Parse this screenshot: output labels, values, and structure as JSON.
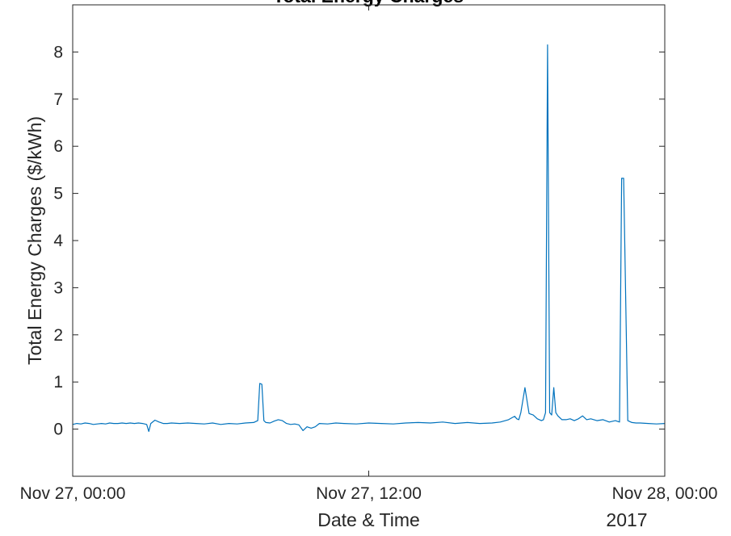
{
  "chart_data": {
    "type": "line",
    "title": "Total Energy Charges",
    "xlabel": "Date & Time",
    "ylabel": "Total Energy Charges ($/kWh)",
    "x_secondary_label": "2017",
    "xlim": [
      "2017-11-27 00:00",
      "2017-11-28 00:00"
    ],
    "ylim": [
      -1,
      9
    ],
    "x_ticks": [
      {
        "t": "2017-11-27 00:00",
        "label": "Nov 27, 00:00"
      },
      {
        "t": "2017-11-27 12:00",
        "label": "Nov 27, 12:00"
      },
      {
        "t": "2017-11-28 00:00",
        "label": "Nov 28, 00:00"
      }
    ],
    "y_ticks": [
      0,
      1,
      2,
      3,
      4,
      5,
      6,
      7,
      8
    ],
    "grid": false,
    "line_color": "#0072BD",
    "series": [
      {
        "x": [
          "2017-11-27 00:00",
          "2017-11-27 00:10",
          "2017-11-27 00:20",
          "2017-11-27 00:30",
          "2017-11-27 00:40",
          "2017-11-27 00:50",
          "2017-11-27 01:00",
          "2017-11-27 01:10",
          "2017-11-27 01:20",
          "2017-11-27 01:30",
          "2017-11-27 01:40",
          "2017-11-27 01:50",
          "2017-11-27 02:00",
          "2017-11-27 02:10",
          "2017-11-27 02:20",
          "2017-11-27 02:30",
          "2017-11-27 02:40",
          "2017-11-27 02:50",
          "2017-11-27 03:00",
          "2017-11-27 03:05",
          "2017-11-27 03:10",
          "2017-11-27 03:20",
          "2017-11-27 03:30",
          "2017-11-27 03:40",
          "2017-11-27 03:50",
          "2017-11-27 04:00",
          "2017-11-27 04:20",
          "2017-11-27 04:40",
          "2017-11-27 05:00",
          "2017-11-27 05:20",
          "2017-11-27 05:40",
          "2017-11-27 06:00",
          "2017-11-27 06:20",
          "2017-11-27 06:40",
          "2017-11-27 07:00",
          "2017-11-27 07:20",
          "2017-11-27 07:30",
          "2017-11-27 07:35",
          "2017-11-27 07:40",
          "2017-11-27 07:45",
          "2017-11-27 07:50",
          "2017-11-27 08:00",
          "2017-11-27 08:10",
          "2017-11-27 08:20",
          "2017-11-27 08:30",
          "2017-11-27 08:40",
          "2017-11-27 08:50",
          "2017-11-27 09:00",
          "2017-11-27 09:10",
          "2017-11-27 09:20",
          "2017-11-27 09:30",
          "2017-11-27 09:40",
          "2017-11-27 09:50",
          "2017-11-27 10:00",
          "2017-11-27 10:20",
          "2017-11-27 10:40",
          "2017-11-27 11:00",
          "2017-11-27 11:30",
          "2017-11-27 12:00",
          "2017-11-27 12:30",
          "2017-11-27 13:00",
          "2017-11-27 13:30",
          "2017-11-27 14:00",
          "2017-11-27 14:30",
          "2017-11-27 15:00",
          "2017-11-27 15:30",
          "2017-11-27 16:00",
          "2017-11-27 16:30",
          "2017-11-27 17:00",
          "2017-11-27 17:20",
          "2017-11-27 17:40",
          "2017-11-27 17:50",
          "2017-11-27 17:55",
          "2017-11-27 18:00",
          "2017-11-27 18:05",
          "2017-11-27 18:10",
          "2017-11-27 18:20",
          "2017-11-27 18:30",
          "2017-11-27 18:40",
          "2017-11-27 18:50",
          "2017-11-27 19:00",
          "2017-11-27 19:05",
          "2017-11-27 19:10",
          "2017-11-27 19:15",
          "2017-11-27 19:20",
          "2017-11-27 19:25",
          "2017-11-27 19:30",
          "2017-11-27 19:35",
          "2017-11-27 19:40",
          "2017-11-27 19:50",
          "2017-11-27 20:00",
          "2017-11-27 20:10",
          "2017-11-27 20:20",
          "2017-11-27 20:30",
          "2017-11-27 20:40",
          "2017-11-27 20:50",
          "2017-11-27 21:00",
          "2017-11-27 21:15",
          "2017-11-27 21:30",
          "2017-11-27 21:45",
          "2017-11-27 22:00",
          "2017-11-27 22:10",
          "2017-11-27 22:15",
          "2017-11-27 22:20",
          "2017-11-27 22:30",
          "2017-11-27 22:40",
          "2017-11-27 22:50",
          "2017-11-27 23:00",
          "2017-11-27 23:20",
          "2017-11-27 23:40",
          "2017-11-28 00:00"
        ],
        "y": [
          0.1,
          0.12,
          0.11,
          0.13,
          0.12,
          0.1,
          0.11,
          0.12,
          0.11,
          0.13,
          0.12,
          0.12,
          0.13,
          0.12,
          0.13,
          0.12,
          0.13,
          0.12,
          0.1,
          -0.05,
          0.12,
          0.19,
          0.15,
          0.12,
          0.12,
          0.13,
          0.12,
          0.13,
          0.12,
          0.11,
          0.13,
          0.1,
          0.12,
          0.11,
          0.13,
          0.14,
          0.18,
          0.97,
          0.95,
          0.18,
          0.14,
          0.13,
          0.17,
          0.2,
          0.18,
          0.12,
          0.1,
          0.11,
          0.09,
          -0.03,
          0.05,
          0.02,
          0.05,
          0.12,
          0.11,
          0.13,
          0.12,
          0.11,
          0.13,
          0.12,
          0.11,
          0.13,
          0.14,
          0.13,
          0.15,
          0.12,
          0.14,
          0.12,
          0.13,
          0.15,
          0.2,
          0.25,
          0.27,
          0.22,
          0.2,
          0.35,
          0.88,
          0.33,
          0.3,
          0.22,
          0.18,
          0.2,
          0.35,
          8.15,
          0.35,
          0.3,
          0.88,
          0.35,
          0.28,
          0.2,
          0.2,
          0.22,
          0.18,
          0.22,
          0.28,
          0.2,
          0.22,
          0.18,
          0.2,
          0.15,
          0.18,
          0.15,
          5.32,
          5.32,
          0.18,
          0.14,
          0.13,
          0.13,
          0.12,
          0.11,
          0.12
        ]
      }
    ]
  }
}
